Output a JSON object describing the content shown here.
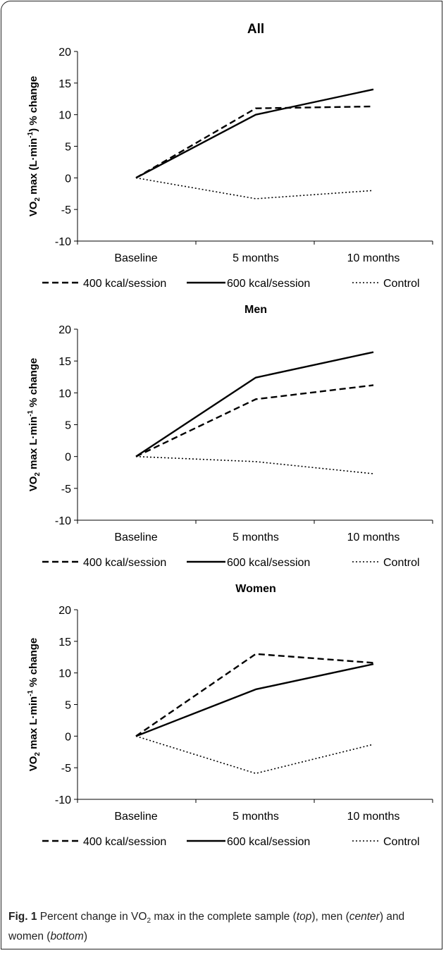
{
  "chart_data": [
    {
      "type": "line",
      "title": "All",
      "ylabel": "VO2 max (L·min-1) % change",
      "ylabel_parts": {
        "pre": "VO",
        "sub": "2",
        "mid": " max (L·min",
        "sup": "-1",
        "post": ") % change"
      },
      "categories": [
        "Baseline",
        "5 months",
        "10 months"
      ],
      "ylim": [
        -10,
        20
      ],
      "yticks": [
        "20",
        "15",
        "10",
        "5",
        "0",
        "-5",
        "-10"
      ],
      "grid": false,
      "legend_position": "bottom",
      "series": [
        {
          "name": "400 kcal/session",
          "style": "dashed",
          "values": [
            0,
            11.0,
            11.3
          ]
        },
        {
          "name": "600 kcal/session",
          "style": "solid",
          "values": [
            0,
            10.0,
            14.0
          ]
        },
        {
          "name": "Control",
          "style": "dotted",
          "values": [
            0,
            -3.3,
            -2.0
          ]
        }
      ]
    },
    {
      "type": "line",
      "title": "Men",
      "ylabel": "VO2 max L·min-1 % change",
      "ylabel_parts": {
        "pre": "VO",
        "sub": "2",
        "mid": " max L·min",
        "sup": "-1",
        "post": " % change"
      },
      "categories": [
        "Baseline",
        "5 months",
        "10 months"
      ],
      "ylim": [
        -10,
        20
      ],
      "yticks": [
        "20",
        "15",
        "10",
        "5",
        "0",
        "-5",
        "-10"
      ],
      "grid": false,
      "legend_position": "bottom",
      "series": [
        {
          "name": "400 kcal/session",
          "style": "dashed",
          "values": [
            0,
            9.0,
            11.2
          ]
        },
        {
          "name": "600 kcal/session",
          "style": "solid",
          "values": [
            0,
            12.4,
            16.4
          ]
        },
        {
          "name": "Control",
          "style": "dotted",
          "values": [
            0,
            -0.8,
            -2.7
          ]
        }
      ]
    },
    {
      "type": "line",
      "title": "Women",
      "ylabel": "VO2 max L·min-1 % change",
      "ylabel_parts": {
        "pre": "VO",
        "sub": "2",
        "mid": " max L·min",
        "sup": "-1",
        "post": " % change"
      },
      "categories": [
        "Baseline",
        "5 months",
        "10 months"
      ],
      "ylim": [
        -10,
        20
      ],
      "yticks": [
        "20",
        "15",
        "10",
        "5",
        "0",
        "-5",
        "-10"
      ],
      "grid": false,
      "legend_position": "bottom",
      "series": [
        {
          "name": "400 kcal/session",
          "style": "dashed",
          "values": [
            0,
            13.0,
            11.6
          ]
        },
        {
          "name": "600 kcal/session",
          "style": "solid",
          "values": [
            0,
            7.4,
            11.4
          ]
        },
        {
          "name": "Control",
          "style": "dotted",
          "values": [
            0,
            -5.9,
            -1.3
          ]
        }
      ]
    }
  ],
  "caption": {
    "label": "Fig. 1",
    "t1": "  Percent change in VO",
    "t1_sub": "2",
    "t2": " max in the complete sample (",
    "top": "top",
    "t3": "), men (",
    "center": "center",
    "t4": ") and women (",
    "bottom": "bottom",
    "t5": ")"
  }
}
